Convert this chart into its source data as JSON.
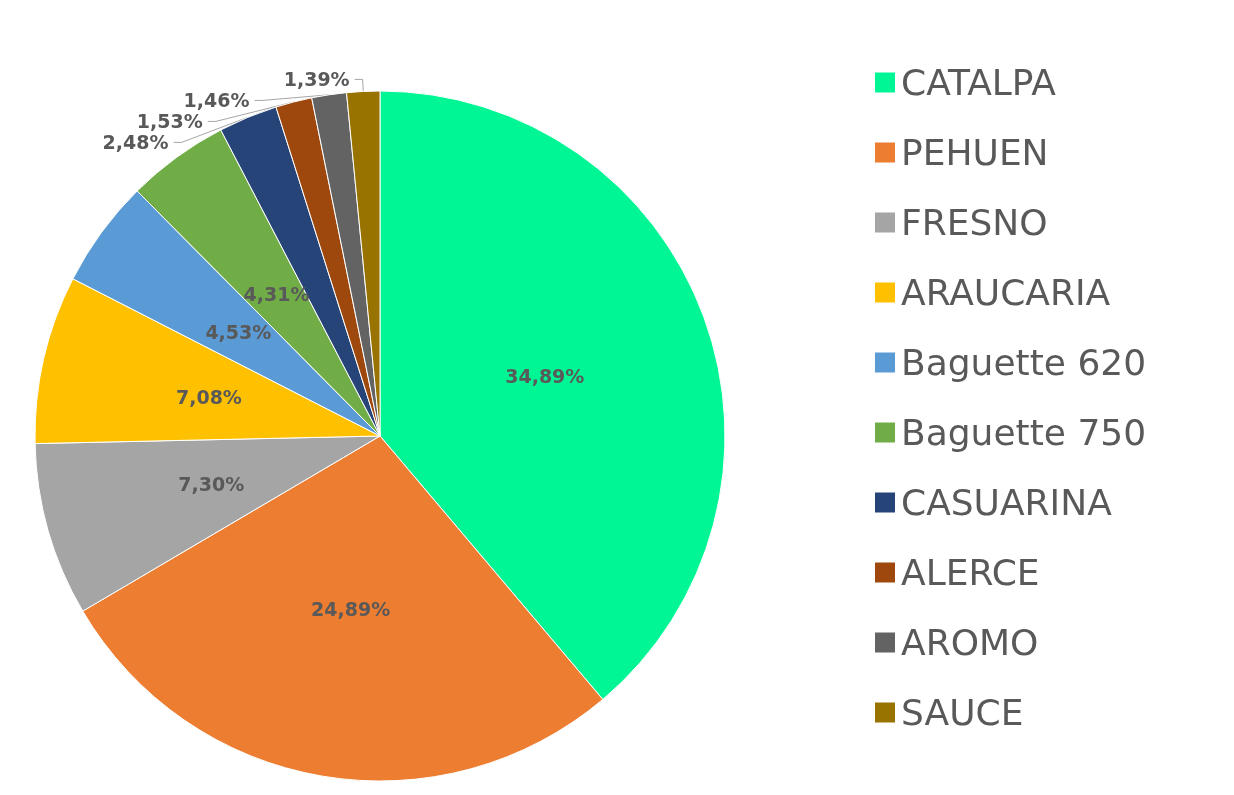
{
  "chart_data": {
    "type": "pie",
    "categories": [
      "CATALPA",
      "PEHUEN",
      "FRESNO",
      "ARAUCARIA",
      "Baguette 620",
      "Baguette 750",
      "CASUARINA",
      "ALERCE",
      "AROMO",
      "SAUCE"
    ],
    "values": [
      34.89,
      24.89,
      7.3,
      7.08,
      4.53,
      4.31,
      2.48,
      1.53,
      1.46,
      1.39
    ],
    "value_labels": [
      "34,89%",
      "24,89%",
      "7,30%",
      "7,08%",
      "4,53%",
      "4,31%",
      "2,48%",
      "1,53%",
      "1,46%",
      "1,39%"
    ],
    "colors": [
      "#00f595",
      "#ed7d31",
      "#a5a5a5",
      "#ffc000",
      "#5b9bd5",
      "#70ad47",
      "#264478",
      "#9e480e",
      "#636363",
      "#997300"
    ],
    "legend": "right"
  }
}
